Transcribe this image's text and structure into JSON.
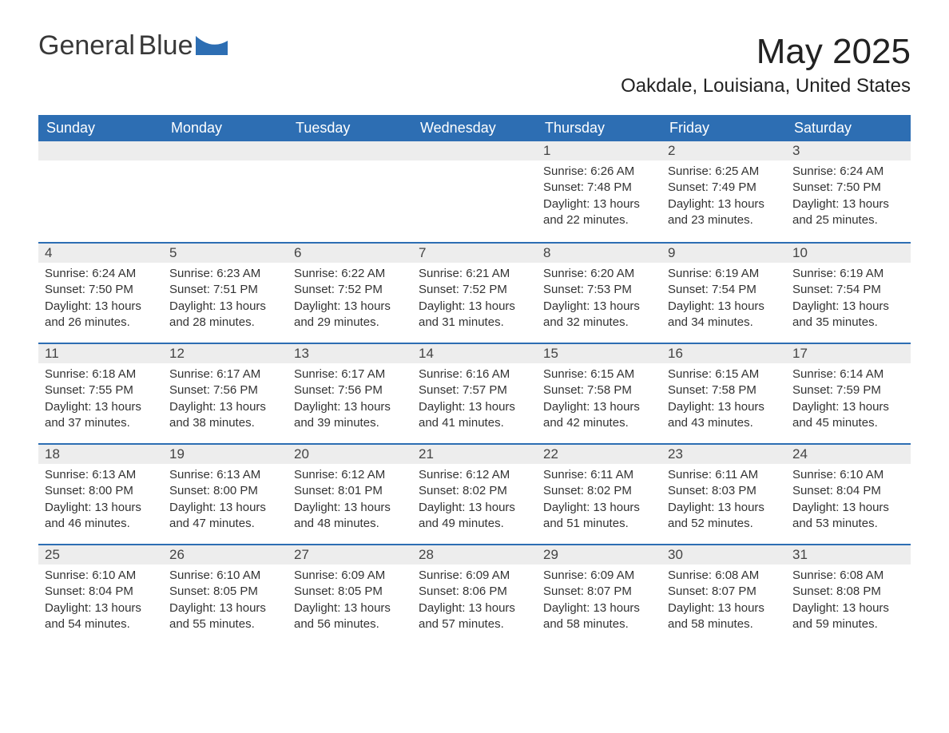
{
  "brand": {
    "name1": "General",
    "name2": "Blue"
  },
  "title": "May 2025",
  "location": "Oakdale, Louisiana, United States",
  "colors": {
    "header_bg": "#2d6eb3",
    "header_text": "#ffffff",
    "daynum_bg": "#ededed",
    "row_border": "#2d6eb3",
    "body_text": "#333333",
    "page_bg": "#ffffff"
  },
  "layout": {
    "columns": 7,
    "rows": 5,
    "first_weekday_index": 4
  },
  "weekdays": [
    "Sunday",
    "Monday",
    "Tuesday",
    "Wednesday",
    "Thursday",
    "Friday",
    "Saturday"
  ],
  "days": [
    {
      "n": 1,
      "sunrise": "6:26 AM",
      "sunset": "7:48 PM",
      "daylight": "13 hours and 22 minutes."
    },
    {
      "n": 2,
      "sunrise": "6:25 AM",
      "sunset": "7:49 PM",
      "daylight": "13 hours and 23 minutes."
    },
    {
      "n": 3,
      "sunrise": "6:24 AM",
      "sunset": "7:50 PM",
      "daylight": "13 hours and 25 minutes."
    },
    {
      "n": 4,
      "sunrise": "6:24 AM",
      "sunset": "7:50 PM",
      "daylight": "13 hours and 26 minutes."
    },
    {
      "n": 5,
      "sunrise": "6:23 AM",
      "sunset": "7:51 PM",
      "daylight": "13 hours and 28 minutes."
    },
    {
      "n": 6,
      "sunrise": "6:22 AM",
      "sunset": "7:52 PM",
      "daylight": "13 hours and 29 minutes."
    },
    {
      "n": 7,
      "sunrise": "6:21 AM",
      "sunset": "7:52 PM",
      "daylight": "13 hours and 31 minutes."
    },
    {
      "n": 8,
      "sunrise": "6:20 AM",
      "sunset": "7:53 PM",
      "daylight": "13 hours and 32 minutes."
    },
    {
      "n": 9,
      "sunrise": "6:19 AM",
      "sunset": "7:54 PM",
      "daylight": "13 hours and 34 minutes."
    },
    {
      "n": 10,
      "sunrise": "6:19 AM",
      "sunset": "7:54 PM",
      "daylight": "13 hours and 35 minutes."
    },
    {
      "n": 11,
      "sunrise": "6:18 AM",
      "sunset": "7:55 PM",
      "daylight": "13 hours and 37 minutes."
    },
    {
      "n": 12,
      "sunrise": "6:17 AM",
      "sunset": "7:56 PM",
      "daylight": "13 hours and 38 minutes."
    },
    {
      "n": 13,
      "sunrise": "6:17 AM",
      "sunset": "7:56 PM",
      "daylight": "13 hours and 39 minutes."
    },
    {
      "n": 14,
      "sunrise": "6:16 AM",
      "sunset": "7:57 PM",
      "daylight": "13 hours and 41 minutes."
    },
    {
      "n": 15,
      "sunrise": "6:15 AM",
      "sunset": "7:58 PM",
      "daylight": "13 hours and 42 minutes."
    },
    {
      "n": 16,
      "sunrise": "6:15 AM",
      "sunset": "7:58 PM",
      "daylight": "13 hours and 43 minutes."
    },
    {
      "n": 17,
      "sunrise": "6:14 AM",
      "sunset": "7:59 PM",
      "daylight": "13 hours and 45 minutes."
    },
    {
      "n": 18,
      "sunrise": "6:13 AM",
      "sunset": "8:00 PM",
      "daylight": "13 hours and 46 minutes."
    },
    {
      "n": 19,
      "sunrise": "6:13 AM",
      "sunset": "8:00 PM",
      "daylight": "13 hours and 47 minutes."
    },
    {
      "n": 20,
      "sunrise": "6:12 AM",
      "sunset": "8:01 PM",
      "daylight": "13 hours and 48 minutes."
    },
    {
      "n": 21,
      "sunrise": "6:12 AM",
      "sunset": "8:02 PM",
      "daylight": "13 hours and 49 minutes."
    },
    {
      "n": 22,
      "sunrise": "6:11 AM",
      "sunset": "8:02 PM",
      "daylight": "13 hours and 51 minutes."
    },
    {
      "n": 23,
      "sunrise": "6:11 AM",
      "sunset": "8:03 PM",
      "daylight": "13 hours and 52 minutes."
    },
    {
      "n": 24,
      "sunrise": "6:10 AM",
      "sunset": "8:04 PM",
      "daylight": "13 hours and 53 minutes."
    },
    {
      "n": 25,
      "sunrise": "6:10 AM",
      "sunset": "8:04 PM",
      "daylight": "13 hours and 54 minutes."
    },
    {
      "n": 26,
      "sunrise": "6:10 AM",
      "sunset": "8:05 PM",
      "daylight": "13 hours and 55 minutes."
    },
    {
      "n": 27,
      "sunrise": "6:09 AM",
      "sunset": "8:05 PM",
      "daylight": "13 hours and 56 minutes."
    },
    {
      "n": 28,
      "sunrise": "6:09 AM",
      "sunset": "8:06 PM",
      "daylight": "13 hours and 57 minutes."
    },
    {
      "n": 29,
      "sunrise": "6:09 AM",
      "sunset": "8:07 PM",
      "daylight": "13 hours and 58 minutes."
    },
    {
      "n": 30,
      "sunrise": "6:08 AM",
      "sunset": "8:07 PM",
      "daylight": "13 hours and 58 minutes."
    },
    {
      "n": 31,
      "sunrise": "6:08 AM",
      "sunset": "8:08 PM",
      "daylight": "13 hours and 59 minutes."
    }
  ],
  "labels": {
    "sunrise": "Sunrise:",
    "sunset": "Sunset:",
    "daylight": "Daylight:"
  }
}
